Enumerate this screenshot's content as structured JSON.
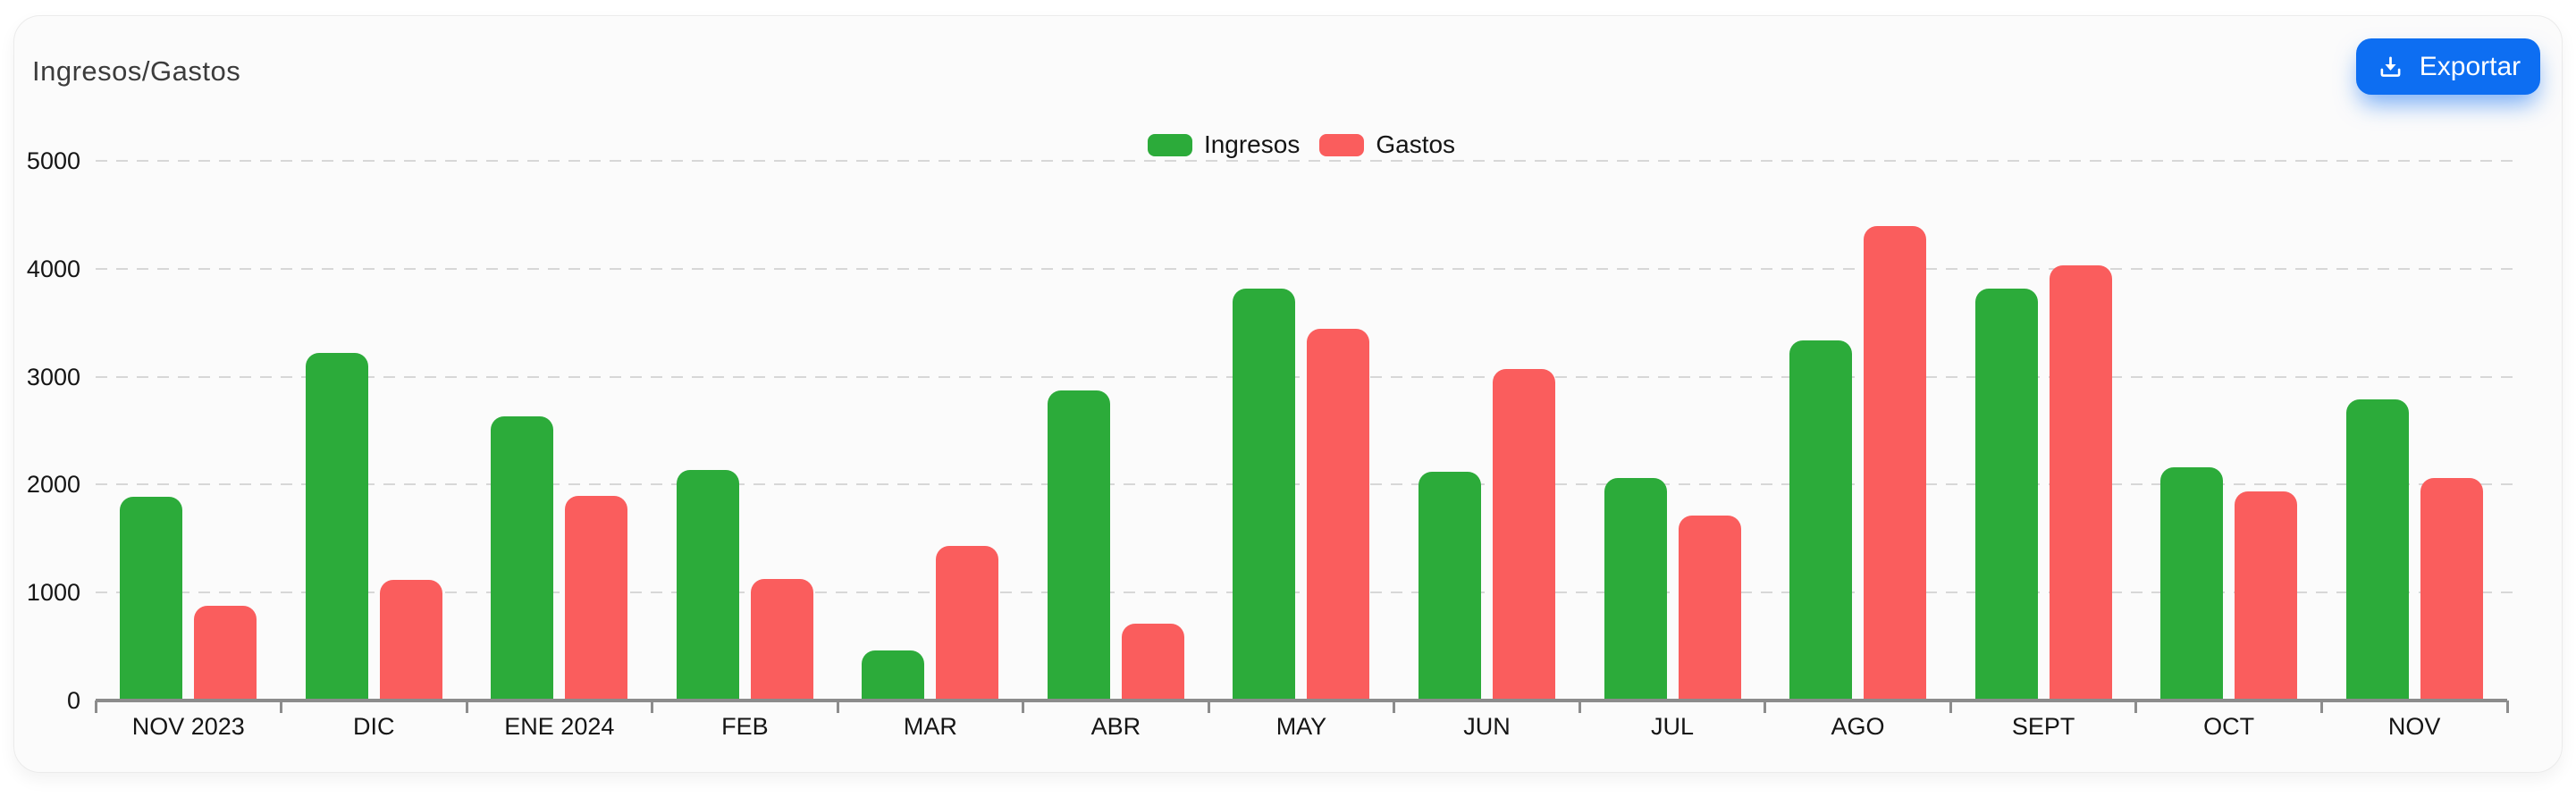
{
  "header": {
    "title": "Ingresos/Gastos",
    "export_button": {
      "label": "Exportar",
      "color": "#0d6ef2",
      "icon": "download-icon"
    }
  },
  "chart_data": {
    "type": "bar",
    "title": "Ingresos/Gastos",
    "categories": [
      "NOV 2023",
      "DIC",
      "ENE 2024",
      "FEB",
      "MAR",
      "ABR",
      "MAY",
      "JUN",
      "JUL",
      "AGO",
      "SEPT",
      "OCT",
      "NOV"
    ],
    "series": [
      {
        "name": "Ingresos",
        "color": "#2cab3a",
        "values": [
          1890,
          3220,
          2630,
          2140,
          460,
          2870,
          3820,
          2120,
          2060,
          3340,
          3820,
          2160,
          2790
        ]
      },
      {
        "name": "Gastos",
        "color": "#fa5d5d",
        "values": [
          880,
          1120,
          1900,
          1130,
          1430,
          710,
          3440,
          3070,
          1710,
          4400,
          4030,
          1940,
          2060
        ]
      }
    ],
    "xlabel": "",
    "ylabel": "",
    "y_ticks": [
      0,
      1000,
      2000,
      3000,
      4000,
      5000
    ],
    "ylim": [
      0,
      5000
    ],
    "grid": "horizontal-dashed",
    "gridline_color": "#d7d7d7",
    "axis_color": "#8c8c8c",
    "legend_position": "top-center"
  }
}
